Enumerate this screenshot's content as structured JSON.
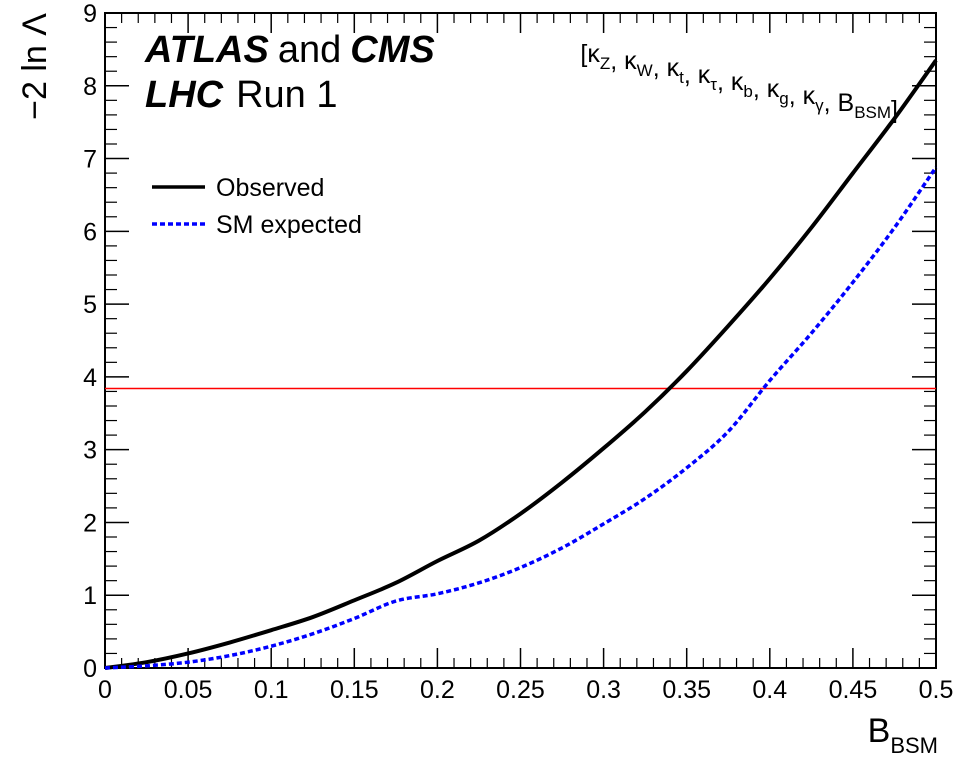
{
  "chart_data": {
    "type": "line",
    "xlabel": {
      "main": "B",
      "sub": "BSM"
    },
    "ylabel": "−2 ln Λ",
    "xlim": [
      0,
      0.5
    ],
    "ylim": [
      0,
      9
    ],
    "x_ticks": [
      "0",
      "0.05",
      "0.1",
      "0.15",
      "0.2",
      "0.25",
      "0.3",
      "0.35",
      "0.4",
      "0.45",
      "0.5"
    ],
    "y_ticks": [
      "0",
      "1",
      "2",
      "3",
      "4",
      "5",
      "6",
      "7",
      "8",
      "9"
    ],
    "grid": false,
    "legend_position": "upper-left",
    "experiment_label": {
      "line1_bold_a": "ATLAS",
      "line1_mid": "and",
      "line1_bold_b": "CMS",
      "line2_bold": "LHC",
      "line2_rest": "Run 1"
    },
    "parameter_label": {
      "open": "[",
      "close": "]",
      "sep": ", ",
      "items": [
        {
          "main": "κ",
          "sub": "Z"
        },
        {
          "main": "κ",
          "sub": "W"
        },
        {
          "main": "κ",
          "sub": "t"
        },
        {
          "main": "κ",
          "sub": "τ"
        },
        {
          "main": "κ",
          "sub": "b"
        },
        {
          "main": "κ",
          "sub": "g"
        },
        {
          "main": "κ",
          "sub": "γ"
        },
        {
          "main": "B",
          "sub": "BSM"
        }
      ]
    },
    "reference_line": {
      "y": 3.84,
      "color": "#ff0000"
    },
    "series": [
      {
        "name": "Observed",
        "color": "#000000",
        "style": "solid",
        "x": [
          0,
          0.025,
          0.05,
          0.075,
          0.1,
          0.125,
          0.15,
          0.175,
          0.2,
          0.225,
          0.25,
          0.275,
          0.3,
          0.325,
          0.35,
          0.375,
          0.4,
          0.425,
          0.45,
          0.475,
          0.5
        ],
        "y": [
          0,
          0.08,
          0.2,
          0.35,
          0.52,
          0.7,
          0.93,
          1.17,
          1.47,
          1.75,
          2.12,
          2.55,
          3.02,
          3.52,
          4.08,
          4.7,
          5.35,
          6.05,
          6.8,
          7.55,
          8.35
        ]
      },
      {
        "name": "SM expected",
        "color": "#0000ff",
        "style": "dashed",
        "x": [
          0,
          0.025,
          0.05,
          0.075,
          0.1,
          0.125,
          0.15,
          0.175,
          0.2,
          0.225,
          0.25,
          0.275,
          0.3,
          0.325,
          0.35,
          0.375,
          0.4,
          0.425,
          0.45,
          0.475,
          0.5
        ],
        "y": [
          0,
          0.03,
          0.08,
          0.17,
          0.3,
          0.47,
          0.68,
          0.92,
          1.02,
          1.17,
          1.38,
          1.65,
          1.98,
          2.33,
          2.75,
          3.25,
          3.95,
          4.6,
          5.3,
          6.05,
          6.88
        ]
      }
    ]
  }
}
